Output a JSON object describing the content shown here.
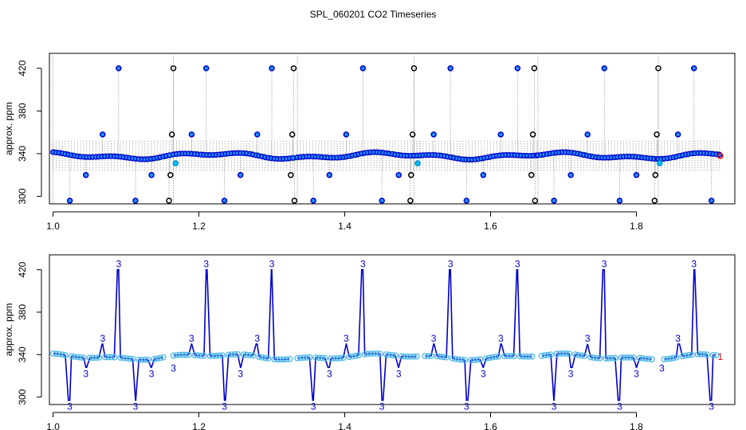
{
  "title": "SPL_060201  CO2 Timeseries",
  "chart_data": [
    {
      "type": "scatter",
      "panel": "top",
      "ylabel": "approx. ppm",
      "xlabel": "",
      "xlim": [
        0.995,
        1.935
      ],
      "ylim": [
        293,
        434
      ],
      "xticks": [
        1.0,
        1.2,
        1.4,
        1.6,
        1.8
      ],
      "xtick_labels": [
        "1.0",
        "1.2",
        "1.4",
        "1.6",
        "1.8"
      ],
      "yticks": [
        300,
        340,
        380,
        420
      ],
      "ytick_labels": [
        "300",
        "340",
        "380",
        "420"
      ],
      "grid": false,
      "base_level_ppm": 338,
      "lane_ppm": 350,
      "series": [
        {
          "name": "blue points (code 3)",
          "color": "#0000cc",
          "fill": "#1e90ff"
        },
        {
          "name": "black points (code 2)",
          "color": "#000000"
        },
        {
          "name": "cyan points",
          "color": "#00bfff"
        },
        {
          "name": "green points",
          "color": "#00cc00"
        },
        {
          "name": "red points (code 1)",
          "color": "#dd0000"
        },
        {
          "name": "grey vertical drop lines",
          "color": "#999999"
        }
      ],
      "segments": [
        {
          "x_start": 1.0,
          "x_end": 1.16
        },
        {
          "x_start": 1.165,
          "x_end": 1.33
        },
        {
          "x_start": 1.335,
          "x_end": 1.505
        },
        {
          "x_start": 1.495,
          "x_end": 1.665
        },
        {
          "x_start": 1.665,
          "x_end": 1.83
        },
        {
          "x_start": 1.83,
          "x_end": 1.915
        }
      ],
      "blue_peaks_420": [
        1.09,
        1.21,
        1.3,
        1.425,
        1.545,
        1.637,
        1.756,
        1.879
      ],
      "blue_peaks_358": [
        1.068,
        1.19,
        1.28,
        1.402,
        1.522,
        1.614,
        1.733,
        1.857
      ],
      "blue_dips_320": [
        1.045,
        1.135,
        1.257,
        1.379,
        1.474,
        1.59,
        1.71,
        1.8
      ],
      "blue_dips_296": [
        1.023,
        1.113,
        1.235,
        1.357,
        1.451,
        1.567,
        1.687,
        1.777,
        1.903
      ],
      "black_peaks_420": [
        1.165,
        1.33,
        1.495,
        1.66,
        1.83
      ],
      "black_peaks_358": [
        1.163,
        1.328,
        1.493,
        1.658,
        1.828
      ],
      "black_dips_320": [
        1.161,
        1.326,
        1.491,
        1.656,
        1.826
      ],
      "black_dips_296": [
        1.159,
        1.331,
        1.49,
        1.661,
        1.825
      ],
      "cyan_points": [
        {
          "x": 1.168,
          "y": 331
        },
        {
          "x": 1.5,
          "y": 331
        },
        {
          "x": 1.832,
          "y": 331
        }
      ],
      "red_points": [
        {
          "x": 1.915,
          "y": 338
        }
      ]
    },
    {
      "type": "line",
      "panel": "bottom",
      "ylabel": "approx. ppm",
      "xlabel": "",
      "xlim": [
        0.995,
        1.935
      ],
      "ylim": [
        293,
        434
      ],
      "xticks": [
        1.0,
        1.2,
        1.4,
        1.6,
        1.8
      ],
      "xtick_labels": [
        "1.0",
        "1.2",
        "1.4",
        "1.6",
        "1.8"
      ],
      "yticks": [
        300,
        340,
        380,
        420
      ],
      "ytick_labels": [
        "300",
        "340",
        "380",
        "420"
      ],
      "grid": false,
      "line_color": "#0000cc",
      "marker_color": "#4db8e6",
      "label_color": "#0000cc",
      "point_code_labels": [
        "3",
        "1"
      ],
      "spike_label_text": "3",
      "end_label_text": "1",
      "end_label_color": "#dd0000",
      "end_label_x": 1.915,
      "segments": [
        {
          "x_start": 1.0,
          "x_end": 1.155
        },
        {
          "x_start": 1.165,
          "x_end": 1.325
        },
        {
          "x_start": 1.335,
          "x_end": 1.5
        },
        {
          "x_start": 1.51,
          "x_end": 1.66
        },
        {
          "x_start": 1.67,
          "x_end": 1.825
        },
        {
          "x_start": 1.838,
          "x_end": 1.91
        }
      ],
      "peaks_420": [
        1.09,
        1.21,
        1.3,
        1.425,
        1.545,
        1.637,
        1.756,
        1.879
      ],
      "peaks_350": [
        1.068,
        1.19,
        1.28,
        1.402,
        1.522,
        1.614,
        1.733,
        1.857
      ],
      "dips_328": [
        1.045,
        1.135,
        1.257,
        1.379,
        1.474,
        1.59,
        1.71,
        1.8
      ],
      "dips_297": [
        1.023,
        1.113,
        1.235,
        1.357,
        1.451,
        1.567,
        1.687,
        1.777,
        1.903
      ],
      "segment_start_labels": [
        1.165,
        1.835
      ]
    }
  ]
}
